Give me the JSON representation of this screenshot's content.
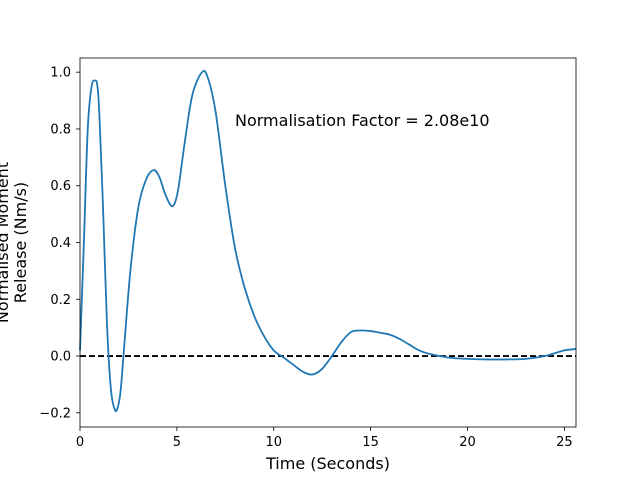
{
  "chart_data": {
    "type": "line",
    "title": "",
    "xlabel": "Time (Seconds)",
    "ylabel_lines": [
      "Normalised Moment",
      "Release (Nm/s)"
    ],
    "xlim": [
      0,
      25.6
    ],
    "ylim": [
      -0.25,
      1.05
    ],
    "xticks": [
      0,
      5,
      10,
      15,
      20,
      25
    ],
    "yticks": [
      -0.2,
      0.0,
      0.2,
      0.4,
      0.6,
      0.8,
      1.0
    ],
    "ytick_labels": [
      "−0.2",
      "0.0",
      "0.2",
      "0.4",
      "0.6",
      "0.8",
      "1.0"
    ],
    "grid": false,
    "annotation": {
      "text": "Normalisation Factor = 2.08e10",
      "x": 8.0,
      "y": 0.81
    },
    "reference_line": {
      "y": 0.0,
      "style": "dashed",
      "color": "#000000"
    },
    "series": [
      {
        "color": "#1f77b4",
        "x": [
          0,
          0.2,
          0.4,
          0.6,
          0.8,
          0.9,
          1.0,
          1.2,
          1.4,
          1.6,
          1.8,
          1.95,
          2.1,
          2.3,
          2.6,
          3.0,
          3.4,
          3.8,
          4.1,
          4.4,
          4.7,
          4.9,
          5.1,
          5.4,
          5.8,
          6.3,
          6.6,
          7.0,
          7.5,
          8.0,
          8.5,
          9.0,
          9.5,
          10.0,
          10.5,
          11.0,
          11.5,
          12.0,
          12.5,
          13.0,
          13.5,
          14.0,
          14.5,
          15.0,
          15.5,
          16.0,
          16.5,
          17.0,
          17.5,
          18.0,
          19.0,
          20.0,
          21.0,
          22.0,
          23.0,
          24.0,
          24.5,
          25.0,
          25.6
        ],
        "y": [
          0.02,
          0.4,
          0.8,
          0.95,
          0.97,
          0.95,
          0.85,
          0.5,
          0.1,
          -0.12,
          -0.19,
          -0.18,
          -0.12,
          0.05,
          0.3,
          0.52,
          0.62,
          0.655,
          0.63,
          0.57,
          0.53,
          0.54,
          0.6,
          0.75,
          0.92,
          1.0,
          0.98,
          0.86,
          0.6,
          0.38,
          0.24,
          0.14,
          0.07,
          0.02,
          -0.005,
          -0.03,
          -0.055,
          -0.065,
          -0.045,
          0.0,
          0.05,
          0.085,
          0.09,
          0.088,
          0.082,
          0.075,
          0.06,
          0.04,
          0.02,
          0.008,
          -0.005,
          -0.01,
          -0.012,
          -0.012,
          -0.01,
          0.0,
          0.01,
          0.02,
          0.025
        ]
      }
    ]
  }
}
